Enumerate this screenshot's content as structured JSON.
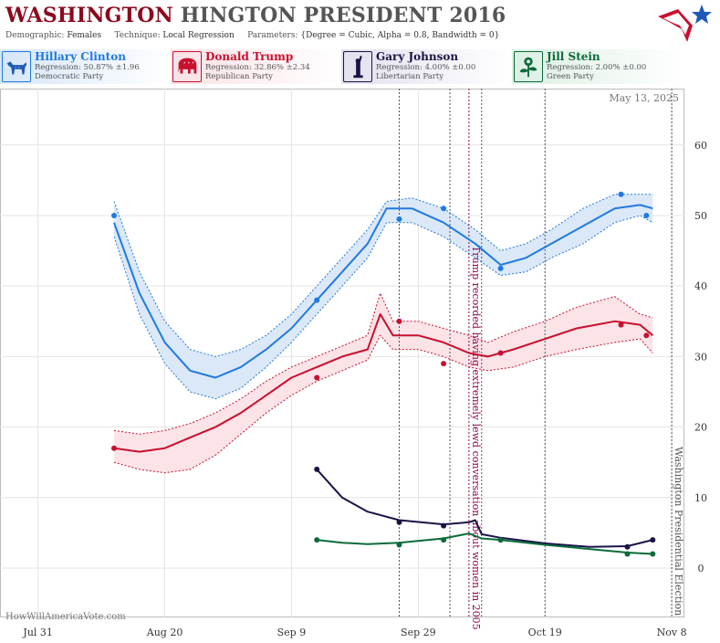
{
  "header": {
    "title_main": "WASHINGTON",
    "title_rest": "HINGTON PRESIDENT 2016",
    "demographic_label": "Demographic:",
    "demographic_value": "Females",
    "technique_label": "Technique:",
    "technique_value": "Local Regression",
    "parameters_label": "Parameters:",
    "parameters_value": "{Degree = Cubic, Alpha = 0.8, Bandwidth = 0}"
  },
  "candidates": [
    {
      "name": "Hillary Clinton",
      "regression": "Regression: 50.87% ±1.96",
      "party": "Democratic Party",
      "color": "#1f7ae0",
      "icon": "donkey-icon"
    },
    {
      "name": "Donald Trump",
      "regression": "Regression: 32.86% ±2.34",
      "party": "Republican Party",
      "color": "#c8102e",
      "icon": "elephant-icon"
    },
    {
      "name": "Gary Johnson",
      "regression": "Regression: 4.00% ±0.00",
      "party": "Libertarian Party",
      "color": "#1a1446",
      "icon": "liberty-icon"
    },
    {
      "name": "Jill Stein",
      "regression": "Regression: 2.00% ±0.00",
      "party": "Green Party",
      "color": "#0b6b3a",
      "icon": "flower-icon"
    }
  ],
  "chart_data": {
    "type": "line",
    "date_stamp": "May 13, 2025",
    "watermark": "HowWillAmericaVote.com",
    "x_ticks": [
      "Jul 31",
      "Aug 20",
      "Sep 9",
      "Sep 29",
      "Oct 19",
      "Nov 8"
    ],
    "y_ticks": [
      "0",
      "10",
      "20",
      "30",
      "40",
      "50",
      "60"
    ],
    "ylim": [
      -7,
      68
    ],
    "xlim": [
      "2016-07-25",
      "2016-11-10"
    ],
    "grid": true,
    "event_lines": [
      {
        "date": "2016-09-26",
        "style": "dotted",
        "color": "#555555"
      },
      {
        "date": "2016-10-04",
        "style": "dotted",
        "color": "#555555"
      },
      {
        "date": "2016-10-07",
        "style": "dotted",
        "color": "#8b0a4e",
        "label": "Trump recorded having extremely lewd conversation about women in 2005"
      },
      {
        "date": "2016-10-09",
        "style": "dotted",
        "color": "#555555"
      },
      {
        "date": "2016-10-19",
        "style": "dotted",
        "color": "#555555"
      },
      {
        "date": "2016-11-08",
        "style": "dotted",
        "color": "#555555",
        "label": "Washington Presidential Election"
      }
    ],
    "series": [
      {
        "name": "Hillary Clinton",
        "color": "#1f7ae0",
        "band_color": "#dbe8f7",
        "points": [
          [
            "2016-08-12",
            50
          ],
          [
            "2016-09-13",
            38
          ],
          [
            "2016-09-26",
            49.5
          ],
          [
            "2016-10-03",
            51
          ],
          [
            "2016-10-12",
            42.5
          ],
          [
            "2016-10-31",
            53
          ],
          [
            "2016-11-04",
            50
          ]
        ],
        "trend": [
          [
            "2016-08-12",
            49
          ],
          [
            "2016-08-16",
            39
          ],
          [
            "2016-08-20",
            32
          ],
          [
            "2016-08-24",
            28
          ],
          [
            "2016-08-28",
            27
          ],
          [
            "2016-09-01",
            28.5
          ],
          [
            "2016-09-05",
            31
          ],
          [
            "2016-09-09",
            34
          ],
          [
            "2016-09-13",
            38
          ],
          [
            "2016-09-17",
            42
          ],
          [
            "2016-09-21",
            46
          ],
          [
            "2016-09-24",
            51
          ],
          [
            "2016-09-28",
            51
          ],
          [
            "2016-10-03",
            49
          ],
          [
            "2016-10-08",
            46
          ],
          [
            "2016-10-12",
            43
          ],
          [
            "2016-10-16",
            44
          ],
          [
            "2016-10-20",
            46
          ],
          [
            "2016-10-25",
            48.5
          ],
          [
            "2016-10-30",
            51
          ],
          [
            "2016-11-03",
            51.5
          ],
          [
            "2016-11-05",
            51
          ]
        ],
        "upper": [
          [
            "2016-08-12",
            52
          ],
          [
            "2016-08-16",
            42
          ],
          [
            "2016-08-20",
            35
          ],
          [
            "2016-08-24",
            31
          ],
          [
            "2016-08-28",
            30
          ],
          [
            "2016-09-01",
            31
          ],
          [
            "2016-09-05",
            33
          ],
          [
            "2016-09-09",
            36
          ],
          [
            "2016-09-13",
            40
          ],
          [
            "2016-09-17",
            44
          ],
          [
            "2016-09-21",
            48
          ],
          [
            "2016-09-24",
            52
          ],
          [
            "2016-09-28",
            52.5
          ],
          [
            "2016-10-03",
            51
          ],
          [
            "2016-10-08",
            48
          ],
          [
            "2016-10-12",
            45
          ],
          [
            "2016-10-16",
            46
          ],
          [
            "2016-10-20",
            48
          ],
          [
            "2016-10-25",
            51
          ],
          [
            "2016-10-30",
            53
          ],
          [
            "2016-11-03",
            53
          ],
          [
            "2016-11-05",
            53
          ]
        ],
        "lower": [
          [
            "2016-08-12",
            47
          ],
          [
            "2016-08-16",
            36
          ],
          [
            "2016-08-20",
            29
          ],
          [
            "2016-08-24",
            25
          ],
          [
            "2016-08-28",
            24
          ],
          [
            "2016-09-01",
            25.5
          ],
          [
            "2016-09-05",
            28.5
          ],
          [
            "2016-09-09",
            32
          ],
          [
            "2016-09-13",
            36
          ],
          [
            "2016-09-17",
            40
          ],
          [
            "2016-09-21",
            44
          ],
          [
            "2016-09-24",
            49
          ],
          [
            "2016-09-28",
            49
          ],
          [
            "2016-10-03",
            47
          ],
          [
            "2016-10-08",
            44
          ],
          [
            "2016-10-12",
            41.5
          ],
          [
            "2016-10-16",
            42
          ],
          [
            "2016-10-20",
            44
          ],
          [
            "2016-10-25",
            46
          ],
          [
            "2016-10-30",
            49
          ],
          [
            "2016-11-03",
            50
          ],
          [
            "2016-11-05",
            49
          ]
        ]
      },
      {
        "name": "Donald Trump",
        "color": "#c8102e",
        "band_color": "#fbe3e7",
        "points": [
          [
            "2016-08-12",
            17
          ],
          [
            "2016-09-13",
            27
          ],
          [
            "2016-09-26",
            35
          ],
          [
            "2016-10-03",
            29
          ],
          [
            "2016-10-12",
            30.5
          ],
          [
            "2016-10-31",
            34.5
          ],
          [
            "2016-11-04",
            33
          ]
        ],
        "trend": [
          [
            "2016-08-12",
            17
          ],
          [
            "2016-08-16",
            16.5
          ],
          [
            "2016-08-20",
            17
          ],
          [
            "2016-08-24",
            18.5
          ],
          [
            "2016-08-28",
            20
          ],
          [
            "2016-09-01",
            22
          ],
          [
            "2016-09-05",
            24.5
          ],
          [
            "2016-09-09",
            27
          ],
          [
            "2016-09-13",
            28.5
          ],
          [
            "2016-09-17",
            30
          ],
          [
            "2016-09-21",
            31
          ],
          [
            "2016-09-23",
            36
          ],
          [
            "2016-09-25",
            33
          ],
          [
            "2016-09-29",
            33
          ],
          [
            "2016-10-03",
            32
          ],
          [
            "2016-10-07",
            30.5
          ],
          [
            "2016-10-10",
            30
          ],
          [
            "2016-10-14",
            31
          ],
          [
            "2016-10-19",
            32.5
          ],
          [
            "2016-10-24",
            34
          ],
          [
            "2016-10-30",
            35
          ],
          [
            "2016-11-03",
            34.5
          ],
          [
            "2016-11-05",
            33
          ]
        ],
        "upper": [
          [
            "2016-08-12",
            19.5
          ],
          [
            "2016-08-16",
            19
          ],
          [
            "2016-08-20",
            19.5
          ],
          [
            "2016-08-24",
            20.5
          ],
          [
            "2016-08-28",
            22
          ],
          [
            "2016-09-01",
            24
          ],
          [
            "2016-09-05",
            26.5
          ],
          [
            "2016-09-09",
            28.5
          ],
          [
            "2016-09-13",
            30
          ],
          [
            "2016-09-17",
            31.5
          ],
          [
            "2016-09-21",
            33
          ],
          [
            "2016-09-23",
            39
          ],
          [
            "2016-09-25",
            35
          ],
          [
            "2016-09-29",
            35
          ],
          [
            "2016-10-03",
            34
          ],
          [
            "2016-10-07",
            33
          ],
          [
            "2016-10-10",
            32
          ],
          [
            "2016-10-14",
            33.5
          ],
          [
            "2016-10-19",
            35
          ],
          [
            "2016-10-24",
            37
          ],
          [
            "2016-10-30",
            38.5
          ],
          [
            "2016-11-03",
            36
          ],
          [
            "2016-11-05",
            35.5
          ]
        ],
        "lower": [
          [
            "2016-08-12",
            15
          ],
          [
            "2016-08-16",
            14
          ],
          [
            "2016-08-20",
            13.5
          ],
          [
            "2016-08-24",
            14
          ],
          [
            "2016-08-28",
            16
          ],
          [
            "2016-09-01",
            19
          ],
          [
            "2016-09-05",
            22
          ],
          [
            "2016-09-09",
            24.5
          ],
          [
            "2016-09-13",
            26.5
          ],
          [
            "2016-09-17",
            28
          ],
          [
            "2016-09-21",
            29.5
          ],
          [
            "2016-09-23",
            33
          ],
          [
            "2016-09-25",
            31
          ],
          [
            "2016-09-29",
            31
          ],
          [
            "2016-10-03",
            30
          ],
          [
            "2016-10-07",
            28.5
          ],
          [
            "2016-10-10",
            28
          ],
          [
            "2016-10-14",
            28.5
          ],
          [
            "2016-10-19",
            30
          ],
          [
            "2016-10-24",
            31
          ],
          [
            "2016-10-30",
            32
          ],
          [
            "2016-11-03",
            32.5
          ],
          [
            "2016-11-05",
            30.5
          ]
        ]
      },
      {
        "name": "Gary Johnson",
        "color": "#1a1446",
        "points": [
          [
            "2016-09-13",
            14
          ],
          [
            "2016-09-26",
            6.5
          ],
          [
            "2016-10-03",
            6
          ],
          [
            "2016-10-12",
            4
          ],
          [
            "2016-11-01",
            3
          ],
          [
            "2016-11-05",
            4
          ]
        ],
        "trend": [
          [
            "2016-09-13",
            14
          ],
          [
            "2016-09-17",
            10
          ],
          [
            "2016-09-21",
            8
          ],
          [
            "2016-09-26",
            6.8
          ],
          [
            "2016-10-03",
            6.2
          ],
          [
            "2016-10-07",
            6.5
          ],
          [
            "2016-10-08",
            6.8
          ],
          [
            "2016-10-09",
            4.8
          ],
          [
            "2016-10-12",
            4.3
          ],
          [
            "2016-10-19",
            3.5
          ],
          [
            "2016-10-26",
            3
          ],
          [
            "2016-11-01",
            3.1
          ],
          [
            "2016-11-05",
            4
          ]
        ]
      },
      {
        "name": "Jill Stein",
        "color": "#0b6b3a",
        "points": [
          [
            "2016-09-13",
            4
          ],
          [
            "2016-09-26",
            3.3
          ],
          [
            "2016-10-03",
            4
          ],
          [
            "2016-10-12",
            4
          ],
          [
            "2016-11-01",
            2
          ],
          [
            "2016-11-05",
            2
          ]
        ],
        "trend": [
          [
            "2016-09-13",
            4
          ],
          [
            "2016-09-17",
            3.6
          ],
          [
            "2016-09-21",
            3.4
          ],
          [
            "2016-09-26",
            3.6
          ],
          [
            "2016-10-03",
            4.2
          ],
          [
            "2016-10-07",
            4.9
          ],
          [
            "2016-10-09",
            4.2
          ],
          [
            "2016-10-12",
            4
          ],
          [
            "2016-10-19",
            3.3
          ],
          [
            "2016-10-26",
            2.7
          ],
          [
            "2016-11-01",
            2.2
          ],
          [
            "2016-11-05",
            2
          ]
        ]
      }
    ]
  }
}
